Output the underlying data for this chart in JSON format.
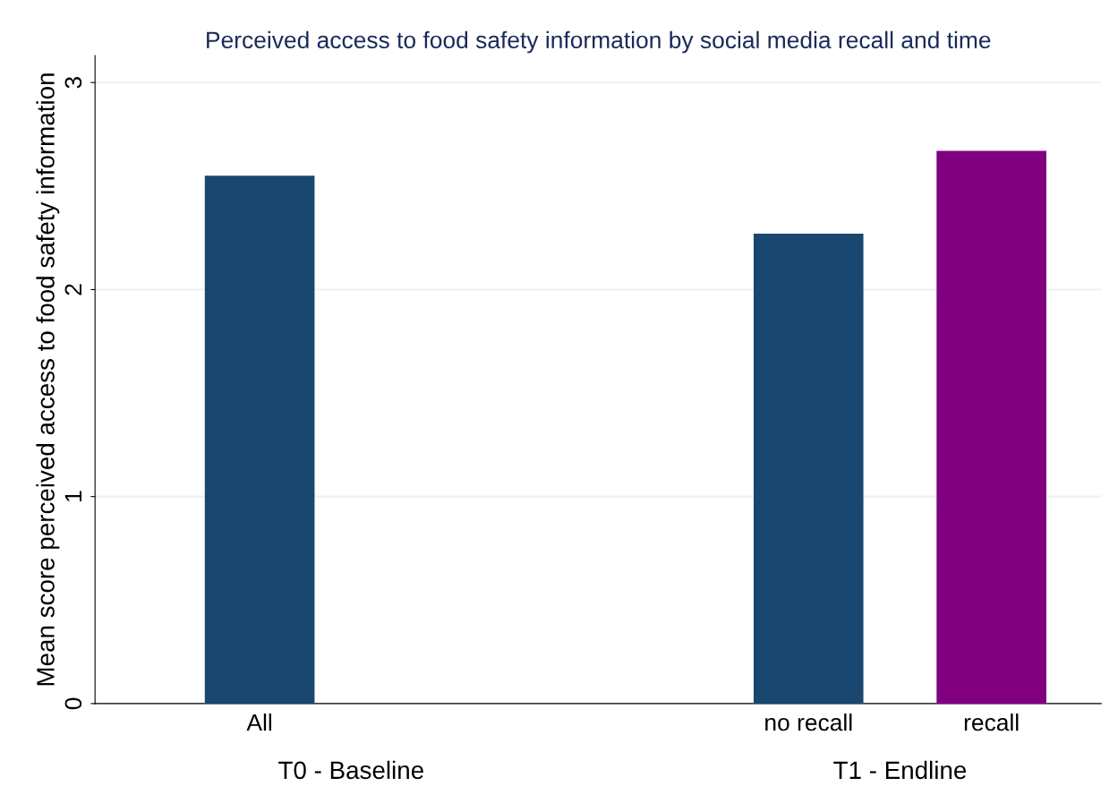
{
  "chart_data": {
    "type": "bar",
    "title": "Perceived access to food safety information by social media recall and time",
    "ylabel": "Mean score perceived access to food safety information",
    "categories": [
      "All",
      null,
      null,
      "no recall",
      "recall"
    ],
    "colors": [
      "#1a476f",
      null,
      null,
      "#1a476f",
      "#800080"
    ],
    "values": [
      2.55,
      null,
      null,
      2.27,
      2.67
    ],
    "ylim": [
      0,
      3.13
    ],
    "yticks": [
      0,
      1,
      2,
      3
    ],
    "grid": "y",
    "annotations": [
      "T0 - Baseline",
      "T1 - Endline"
    ]
  }
}
